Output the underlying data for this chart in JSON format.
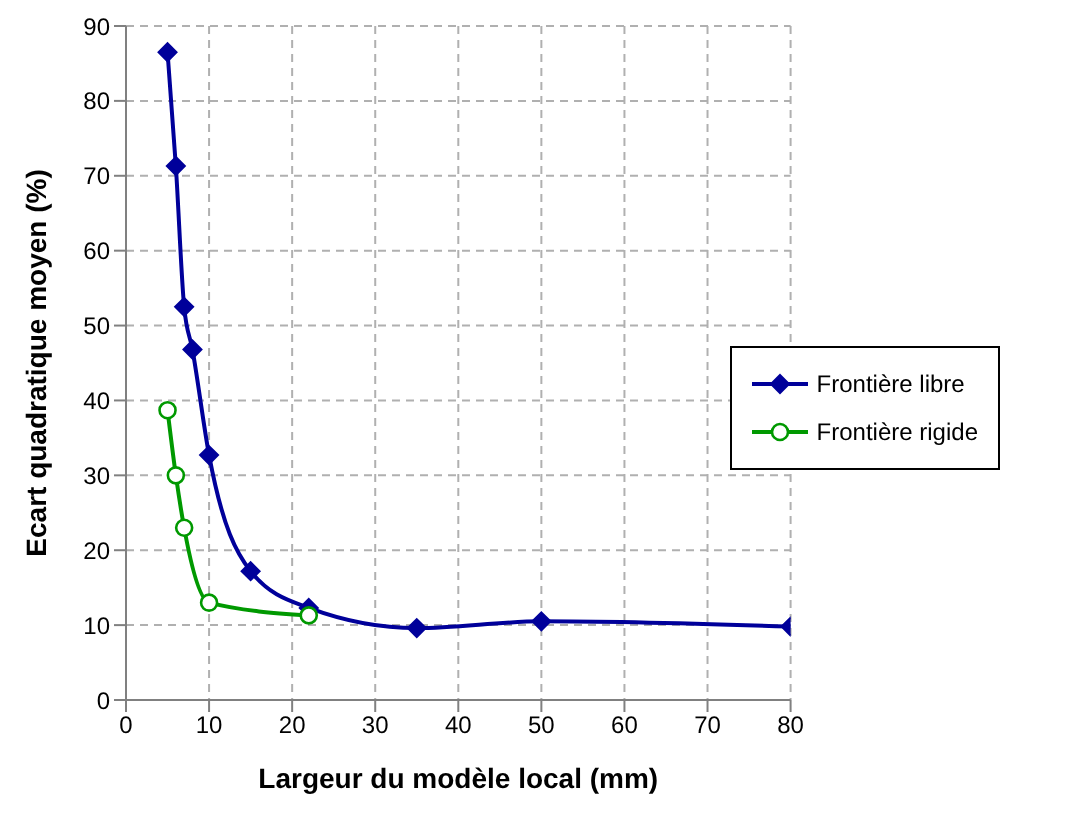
{
  "chart_data": {
    "type": "line",
    "xlabel": "Largeur du modèle local (mm)",
    "ylabel": "Ecart quadratique moyen (%)",
    "xlim": [
      0,
      80
    ],
    "xticks": [
      0,
      10,
      20,
      30,
      40,
      50,
      60,
      70,
      80
    ],
    "ylim": [
      0,
      90
    ],
    "yticks": [
      0,
      10,
      20,
      30,
      40,
      50,
      60,
      70,
      80,
      90
    ],
    "grid": true,
    "legend": "right",
    "line_style": "solid",
    "series": [
      {
        "name": "Frontière libre",
        "color": "#00009a",
        "marker": "diamond",
        "x": [
          5,
          6,
          7,
          8,
          10,
          15,
          22,
          35,
          50,
          80
        ],
        "values": [
          86.5,
          71.3,
          52.5,
          46.8,
          32.7,
          17.2,
          12.3,
          9.6,
          10.5,
          9.8
        ]
      },
      {
        "name": "Frontière rigide",
        "color": "#009900",
        "marker": "circle",
        "x": [
          5,
          6,
          7,
          10,
          22
        ],
        "values": [
          38.7,
          30,
          23,
          13,
          11.3
        ]
      }
    ]
  }
}
